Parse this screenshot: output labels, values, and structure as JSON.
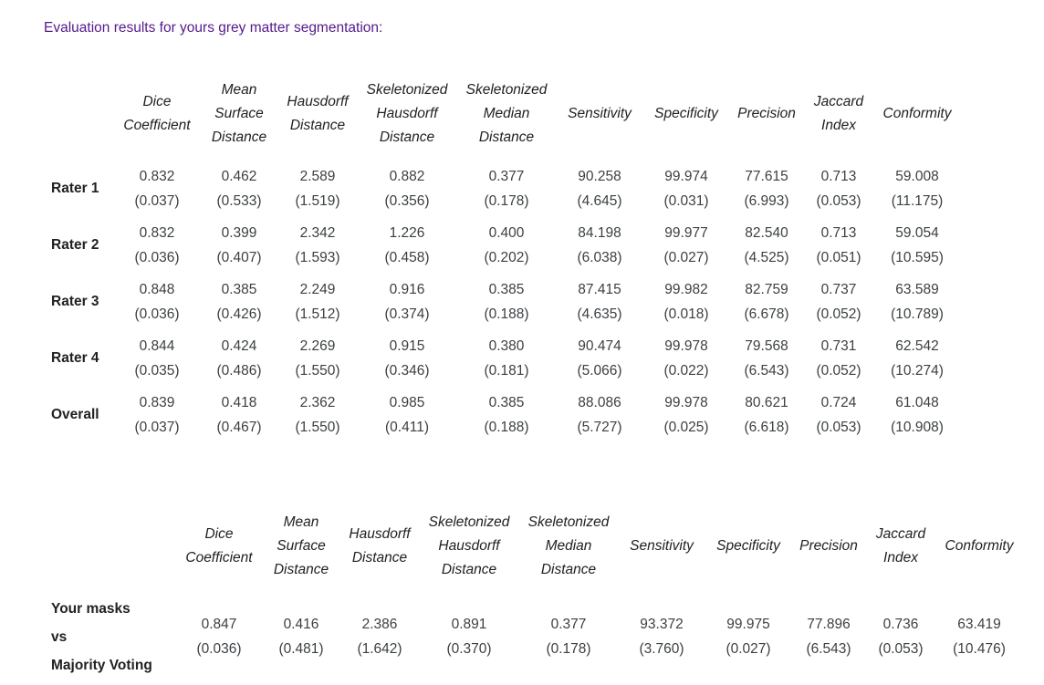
{
  "page": {
    "title": "Evaluation results for yours grey matter segmentation:",
    "title_color": "#551a8b",
    "header_text_color": "#202124",
    "value_text_color": "#3c4043"
  },
  "columns": [
    "Dice Coefficient",
    "Mean Surface Distance",
    "Hausdorff Distance",
    "Skeletonized Hausdorff Distance",
    "Skeletonized Median Distance",
    "Sensitivity",
    "Specificity",
    "Precision",
    "Jaccard Index",
    "Conformity"
  ],
  "raters_table": {
    "rows": [
      {
        "label": "Rater 1",
        "means": [
          "0.832",
          "0.462",
          "2.589",
          "0.882",
          "0.377",
          "90.258",
          "99.974",
          "77.615",
          "0.713",
          "59.008"
        ],
        "stds": [
          "(0.037)",
          "(0.533)",
          "(1.519)",
          "(0.356)",
          "(0.178)",
          "(4.645)",
          "(0.031)",
          "(6.993)",
          "(0.053)",
          "(11.175)"
        ]
      },
      {
        "label": "Rater 2",
        "means": [
          "0.832",
          "0.399",
          "2.342",
          "1.226",
          "0.400",
          "84.198",
          "99.977",
          "82.540",
          "0.713",
          "59.054"
        ],
        "stds": [
          "(0.036)",
          "(0.407)",
          "(1.593)",
          "(0.458)",
          "(0.202)",
          "(6.038)",
          "(0.027)",
          "(4.525)",
          "(0.051)",
          "(10.595)"
        ]
      },
      {
        "label": "Rater 3",
        "means": [
          "0.848",
          "0.385",
          "2.249",
          "0.916",
          "0.385",
          "87.415",
          "99.982",
          "82.759",
          "0.737",
          "63.589"
        ],
        "stds": [
          "(0.036)",
          "(0.426)",
          "(1.512)",
          "(0.374)",
          "(0.188)",
          "(4.635)",
          "(0.018)",
          "(6.678)",
          "(0.052)",
          "(10.789)"
        ]
      },
      {
        "label": "Rater 4",
        "means": [
          "0.844",
          "0.424",
          "2.269",
          "0.915",
          "0.380",
          "90.474",
          "99.978",
          "79.568",
          "0.731",
          "62.542"
        ],
        "stds": [
          "(0.035)",
          "(0.486)",
          "(1.550)",
          "(0.346)",
          "(0.181)",
          "(5.066)",
          "(0.022)",
          "(6.543)",
          "(0.052)",
          "(10.274)"
        ]
      },
      {
        "label": "Overall",
        "means": [
          "0.839",
          "0.418",
          "2.362",
          "0.985",
          "0.385",
          "88.086",
          "99.978",
          "80.621",
          "0.724",
          "61.048"
        ],
        "stds": [
          "(0.037)",
          "(0.467)",
          "(1.550)",
          "(0.411)",
          "(0.188)",
          "(5.727)",
          "(0.025)",
          "(6.618)",
          "(0.053)",
          "(10.908)"
        ]
      }
    ]
  },
  "comparison_table": {
    "rows": [
      {
        "label_lines": [
          "Your masks",
          "vs",
          "Majority Voting"
        ],
        "means": [
          "0.847",
          "0.416",
          "2.386",
          "0.891",
          "0.377",
          "93.372",
          "99.975",
          "77.896",
          "0.736",
          "63.419"
        ],
        "stds": [
          "(0.036)",
          "(0.481)",
          "(1.642)",
          "(0.370)",
          "(0.178)",
          "(3.760)",
          "(0.027)",
          "(6.543)",
          "(0.053)",
          "(10.476)"
        ]
      }
    ]
  }
}
